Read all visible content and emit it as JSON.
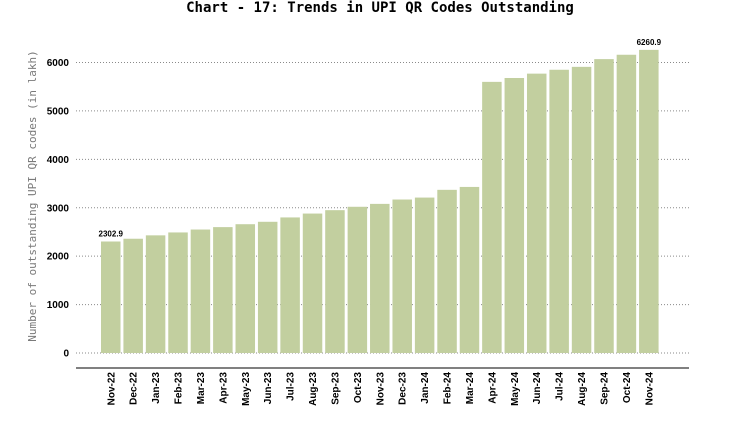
{
  "chart_data": {
    "type": "bar",
    "title": "Chart - 17: Trends in UPI QR Codes Outstanding",
    "ylabel": "Number of outstanding UPI QR codes (in lakh)",
    "xlabel": "",
    "ylim": [
      0,
      6500
    ],
    "yticks": [
      0,
      1000,
      2000,
      3000,
      4000,
      5000,
      6000
    ],
    "grid": "horizontal dotted",
    "bar_color": "#c2cf9f",
    "categories": [
      "Nov-22",
      "Dec-22",
      "Jan-23",
      "Feb-23",
      "Mar-23",
      "Apr-23",
      "May-23",
      "Jun-23",
      "Jul-23",
      "Aug-23",
      "Sep-23",
      "Oct-23",
      "Nov-23",
      "Dec-23",
      "Jan-24",
      "Feb-24",
      "Mar-24",
      "Apr-24",
      "May-24",
      "Jun-24",
      "Jul-24",
      "Aug-24",
      "Sep-24",
      "Oct-24",
      "Nov-24"
    ],
    "values": [
      2302.9,
      2360,
      2430,
      2490,
      2550,
      2600,
      2660,
      2710,
      2800,
      2880,
      2950,
      3020,
      3080,
      3170,
      3210,
      3370,
      3430,
      5600,
      5680,
      5770,
      5850,
      5910,
      6070,
      6160,
      6260.9
    ],
    "data_labels": [
      {
        "index": 0,
        "text": "2302.9"
      },
      {
        "index": 24,
        "text": "6260.9"
      }
    ]
  }
}
